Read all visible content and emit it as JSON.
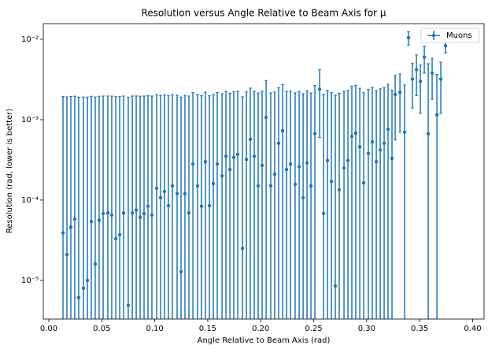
{
  "chart_data": {
    "type": "errorbar",
    "title": "Resolution versus Angle Relative to Beam Axis for μ",
    "xlabel": "Angle Relative to Beam Axis (rad)",
    "ylabel": "Resolution (rad, lower is better)",
    "log_y": true,
    "legend": "upper right",
    "xlim": [
      -0.0052,
      0.4108
    ],
    "xticks": [
      {
        "value": 0,
        "label": "0.00"
      },
      0.05,
      {
        "value": 0.1,
        "label": "0.10"
      },
      0.15,
      {
        "value": 0.2,
        "label": "0.20"
      },
      0.25,
      {
        "value": 0.3,
        "label": "0.30"
      },
      0.35,
      {
        "value": 0.4,
        "label": "0.40"
      }
    ],
    "ylim": [
      3.3e-06,
      0.0157
    ],
    "yticks": [
      {
        "value": 1e-05,
        "label": "10⁻⁵"
      },
      {
        "value": 0.0001,
        "label": "10⁻⁴"
      },
      {
        "value": 0.001,
        "label": "10⁻³"
      },
      {
        "value": 0.01,
        "label": "10⁻²"
      }
    ],
    "series": [
      {
        "name": "Muons",
        "color": "#1f77b4",
        "x": [
          0.0134,
          0.0171,
          0.0208,
          0.0245,
          0.0282,
          0.0327,
          0.0364,
          0.0401,
          0.0438,
          0.0475,
          0.0513,
          0.0557,
          0.0594,
          0.0632,
          0.0669,
          0.0706,
          0.075,
          0.0788,
          0.0825,
          0.0862,
          0.0899,
          0.0936,
          0.0973,
          0.1018,
          0.1055,
          0.1092,
          0.1129,
          0.1166,
          0.1211,
          0.1248,
          0.1285,
          0.1322,
          0.136,
          0.1404,
          0.1441,
          0.1478,
          0.1516,
          0.1553,
          0.159,
          0.1635,
          0.1672,
          0.1709,
          0.1746,
          0.1783,
          0.1828,
          0.1865,
          0.1902,
          0.1939,
          0.1976,
          0.2013,
          0.2051,
          0.2095,
          0.2132,
          0.2169,
          0.2207,
          0.2244,
          0.2281,
          0.2325,
          0.2363,
          0.24,
          0.2437,
          0.2474,
          0.2511,
          0.2556,
          0.2593,
          0.263,
          0.2667,
          0.2704,
          0.2741,
          0.2786,
          0.2823,
          0.286,
          0.2897,
          0.2935,
          0.2972,
          0.3016,
          0.3053,
          0.3091,
          0.3128,
          0.3165,
          0.3202,
          0.3239,
          0.3269,
          0.3314,
          0.3358,
          0.3395,
          0.3432,
          0.347,
          0.3507,
          0.3544,
          0.3581,
          0.3618,
          0.3663,
          0.37,
          0.3744
        ],
        "values": [
          3.9e-05,
          2.1e-05,
          4.6e-05,
          5.8e-05,
          6.1e-06,
          8e-06,
          1e-05,
          5.4e-05,
          1.6e-05,
          5.6e-05,
          6.8e-05,
          6.9e-05,
          6.5e-05,
          3.3e-05,
          3.7e-05,
          6.9e-05,
          4.9e-06,
          6.9e-05,
          7.5e-05,
          6.1e-05,
          6.8e-05,
          8.4e-05,
          6.5e-05,
          0.00014,
          0.000107,
          0.000128,
          8.5e-05,
          0.00015,
          0.00012,
          1.28e-05,
          0.00012,
          6.9e-05,
          0.00028,
          0.00015,
          8.4e-05,
          0.0003,
          8.5e-05,
          0.00016,
          0.00028,
          0.0002,
          0.00035,
          0.00024,
          0.00034,
          0.00037,
          2.5e-05,
          0.00032,
          0.00057,
          0.00035,
          0.00015,
          0.00027,
          0.00107,
          0.00015,
          0.00021,
          0.00051,
          0.00073,
          0.00024,
          0.00028,
          0.000157,
          0.00026,
          0.000107,
          0.00029,
          0.00015,
          0.00067,
          0.0024,
          6.8e-05,
          0.00031,
          0.00017,
          8.5e-06,
          0.000134,
          0.00025,
          0.00031,
          0.00062,
          0.00068,
          0.00046,
          0.000164,
          0.00038,
          0.00053,
          0.0003,
          0.00042,
          0.00051,
          0.00076,
          0.00033,
          0.00206,
          0.0022,
          0.0007,
          0.0105,
          0.0032,
          0.0042,
          0.003,
          0.006,
          0.00067,
          0.0038,
          0.00115,
          0.0032,
          0.0083
        ],
        "errors": [
          0.0019,
          0.0019,
          0.0019,
          0.0019,
          0.0019,
          0.0019,
          0.0019,
          0.0019,
          0.0019,
          0.0019,
          0.0019,
          0.0019,
          0.0019,
          0.0019,
          0.0019,
          0.0019,
          0.0019,
          0.0019,
          0.0019,
          0.0019,
          0.0019,
          0.0019,
          0.0019,
          0.0019,
          0.0019,
          0.0019,
          0.0019,
          0.0019,
          0.0019,
          0.0019,
          0.0019,
          0.0019,
          0.0019,
          0.0019,
          0.0019,
          0.0019,
          0.0019,
          0.0019,
          0.0019,
          0.0019,
          0.0019,
          0.0019,
          0.0019,
          0.0019,
          0.0019,
          0.0019,
          0.0019,
          0.0019,
          0.002,
          0.002,
          0.002,
          0.002,
          0.002,
          0.002,
          0.002,
          0.002,
          0.002,
          0.002,
          0.002,
          0.002,
          0.002,
          0.002,
          0.002,
          0.0018,
          0.002,
          0.002,
          0.002,
          0.002,
          0.002,
          0.002,
          0.002,
          0.002,
          0.002,
          0.002,
          0.002,
          0.002,
          0.002,
          0.002,
          0.002,
          0.002,
          0.002,
          0.002,
          0.0015,
          0.0015,
          0.002,
          0.002,
          0.0018,
          0.0022,
          0.0018,
          0.0022,
          0.0043,
          0.002,
          0.0025,
          0.002,
          0.0015
        ]
      }
    ]
  }
}
